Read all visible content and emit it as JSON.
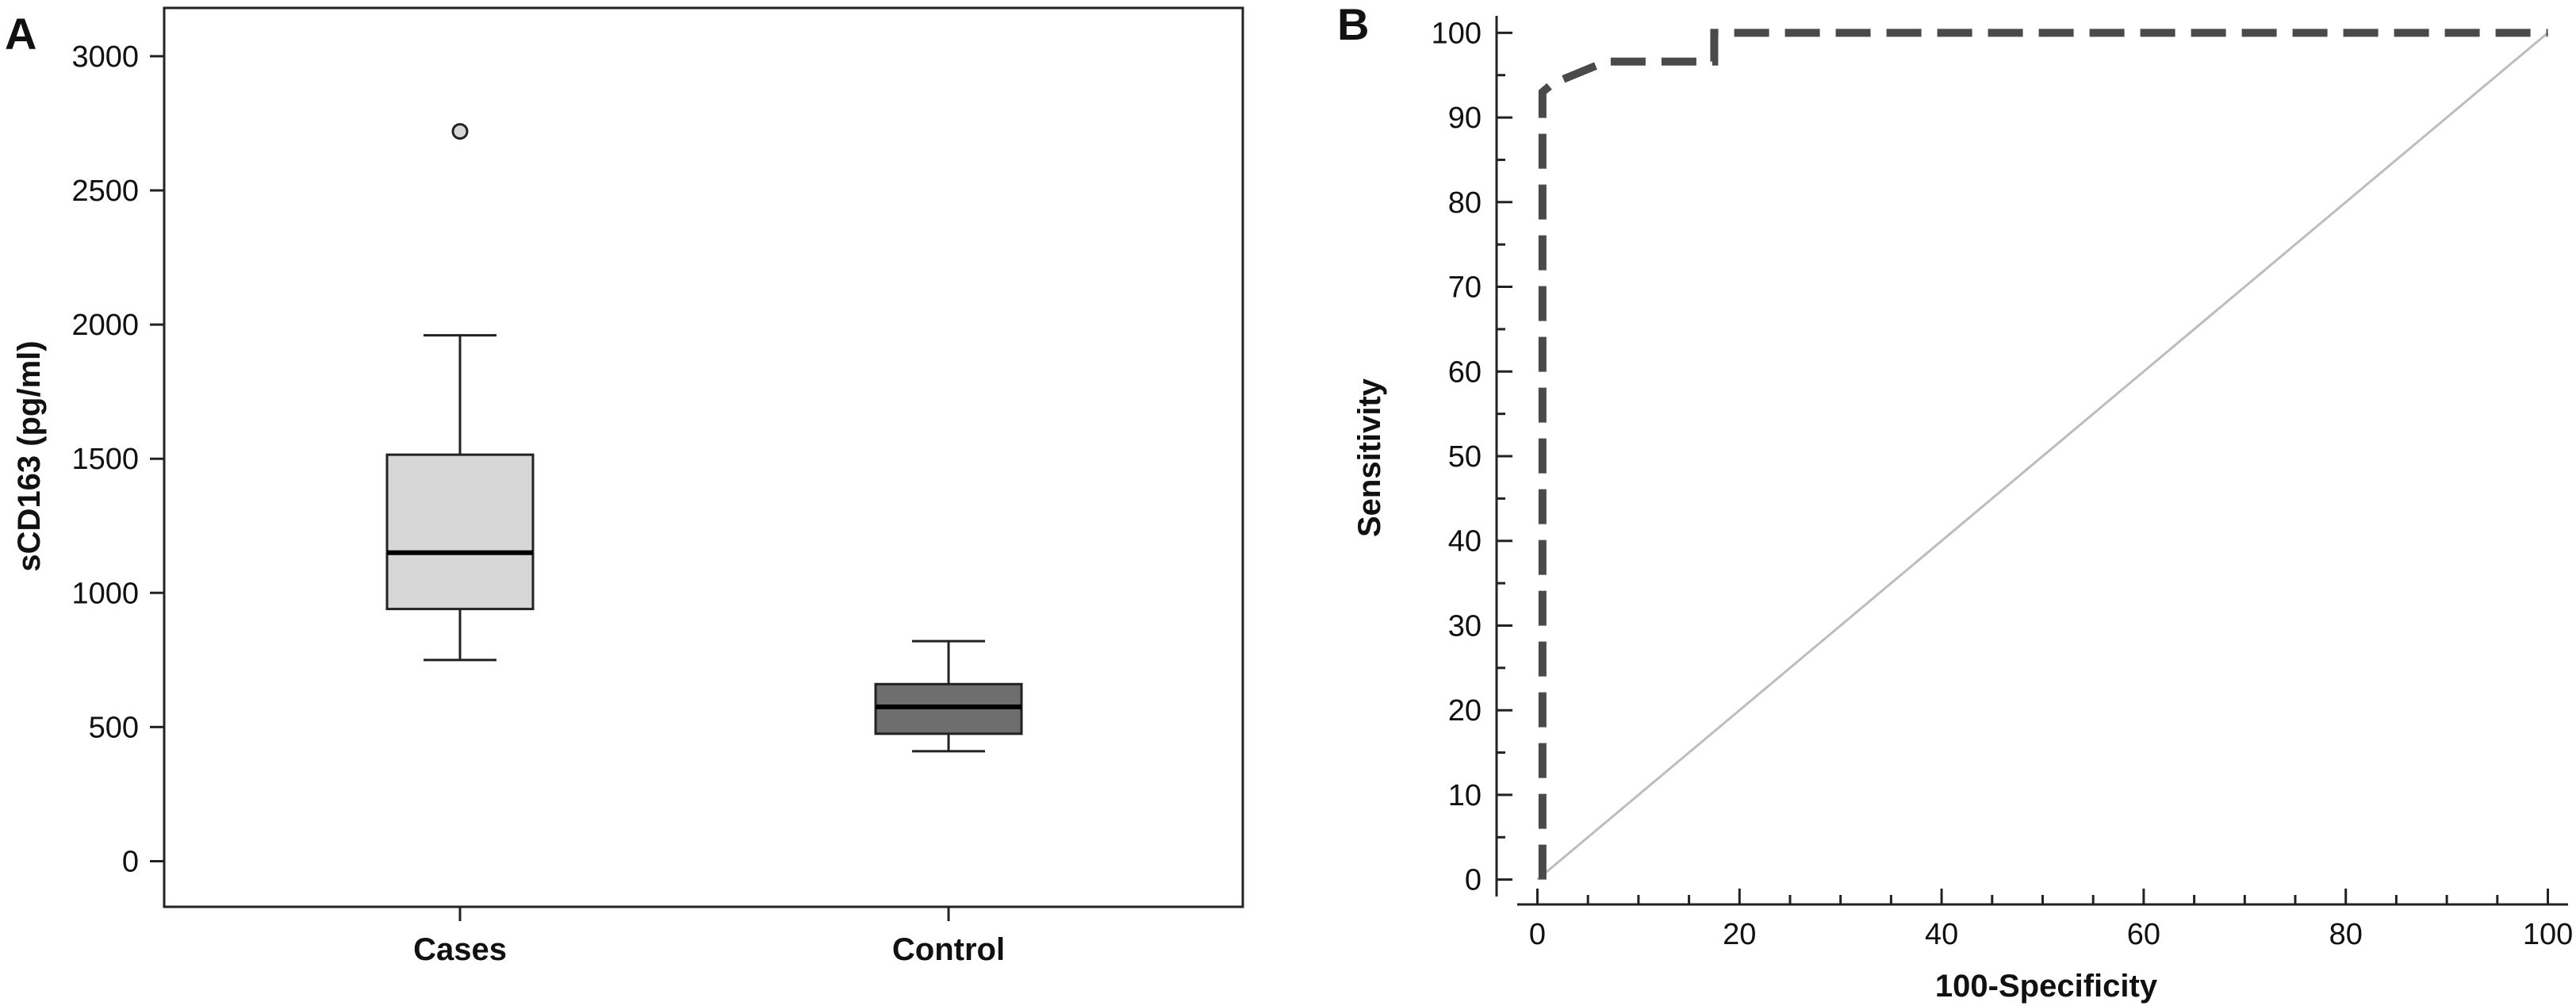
{
  "chart_data": [
    {
      "panel_label": "A",
      "type": "box",
      "title": "",
      "xlabel": "",
      "ylabel": "sCD163 (pg/ml)",
      "ylim": [
        -170,
        3180
      ],
      "yticks": [
        0,
        500,
        1000,
        1500,
        2000,
        2500,
        3000
      ],
      "categories": [
        "Cases",
        "Control"
      ],
      "boxes": [
        {
          "name": "Cases",
          "whisker_low": 750,
          "q1": 940,
          "median": 1150,
          "q3": 1515,
          "whisker_high": 1960,
          "outliers": [
            2720
          ],
          "fill": "#d7d7d7"
        },
        {
          "name": "Control",
          "whisker_low": 410,
          "q1": 475,
          "median": 575,
          "q3": 660,
          "whisker_high": 820,
          "outliers": [],
          "fill": "#6e6e6e"
        }
      ],
      "grid": false
    },
    {
      "panel_label": "B",
      "type": "line",
      "title": "",
      "xlabel": "100-Specificity",
      "ylabel": "Sensitivity",
      "xlim": [
        -2,
        102
      ],
      "ylim": [
        -2,
        102
      ],
      "xticks": [
        0,
        20,
        40,
        60,
        80,
        100
      ],
      "yticks": [
        0,
        10,
        20,
        30,
        40,
        50,
        60,
        70,
        80,
        90,
        100
      ],
      "series": [
        {
          "name": "ROC curve",
          "style": "dashed",
          "color": "#4a4a4a",
          "x": [
            0.5,
            0.5,
            1.5,
            6.8,
            17.5,
            17.5,
            100
          ],
          "y": [
            0,
            93,
            94,
            96.6,
            96.6,
            100,
            100
          ]
        },
        {
          "name": "Reference line",
          "style": "solid",
          "color": "#bdbdbd",
          "x": [
            0,
            100
          ],
          "y": [
            0,
            100
          ]
        }
      ],
      "grid": false
    }
  ]
}
